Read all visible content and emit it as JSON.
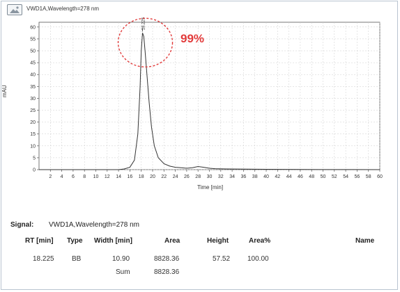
{
  "chart_data": {
    "type": "line",
    "title": "VWD1A,Wavelength=278 nm",
    "xlabel": "Time [min]",
    "ylabel": "mAU",
    "xlim": [
      0,
      60
    ],
    "ylim": [
      0,
      62
    ],
    "x_ticks": [
      2,
      4,
      6,
      8,
      10,
      12,
      14,
      16,
      18,
      20,
      22,
      24,
      26,
      28,
      30,
      32,
      34,
      36,
      38,
      40,
      42,
      44,
      46,
      48,
      50,
      52,
      54,
      56,
      58,
      60
    ],
    "y_ticks": [
      0,
      5,
      10,
      15,
      20,
      25,
      30,
      35,
      40,
      45,
      50,
      55,
      60
    ],
    "grid": true,
    "series": [
      {
        "x": [
          0,
          14,
          15,
          16,
          16.8,
          17.4,
          17.8,
          18.0,
          18.225,
          18.45,
          18.7,
          19.0,
          19.4,
          19.8,
          20.3,
          21.0,
          22.0,
          23.0,
          24.0,
          25.0,
          26.0,
          27.0,
          28.0,
          29.0,
          30.0,
          31.0,
          33.0,
          40.0,
          50.0,
          60.0
        ],
        "values": [
          0,
          0,
          0.3,
          1.0,
          4.0,
          15.0,
          35.0,
          50.0,
          57.52,
          56.0,
          49.0,
          40.0,
          28.0,
          18.0,
          10.0,
          5.0,
          2.5,
          1.5,
          1.0,
          0.8,
          0.6,
          0.8,
          1.3,
          1.0,
          0.6,
          0.4,
          0.3,
          0.15,
          0.05,
          0
        ]
      }
    ],
    "peak_label": "18.225",
    "annotation": "99%"
  },
  "report": {
    "signal_label": "Signal:",
    "signal_value": "VWD1A,Wavelength=278 nm",
    "headers": {
      "rt": "RT [min]",
      "type": "Type",
      "width": "Width [min]",
      "area": "Area",
      "height": "Height",
      "area_pct": "Area%",
      "name": "Name"
    },
    "row": {
      "rt": "18.225",
      "type": "BB",
      "width": "10.90",
      "area": "8828.36",
      "height": "57.52",
      "area_pct": "100.00"
    },
    "sum_label": "Sum",
    "sum_value": "8828.36"
  },
  "colors": {
    "trace": "#333333",
    "grid": "#cccccc",
    "annotation": "#e23b3b"
  }
}
